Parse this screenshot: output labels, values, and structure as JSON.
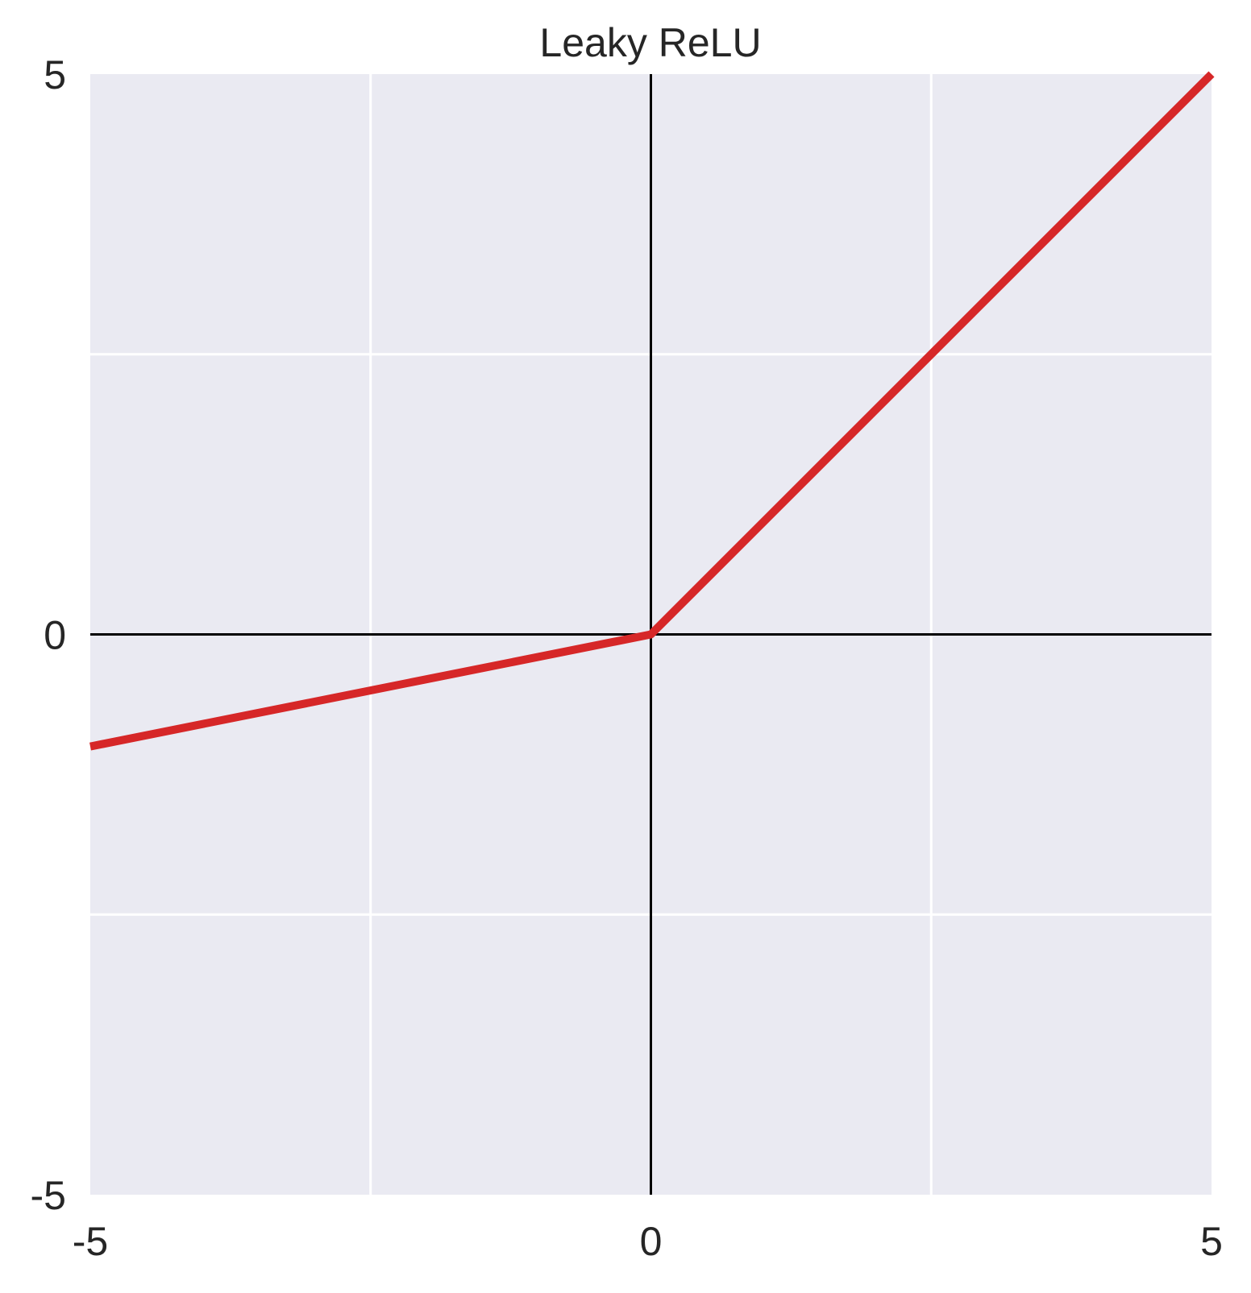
{
  "chart_data": {
    "type": "line",
    "title": "Leaky ReLU",
    "xlabel": "",
    "ylabel": "",
    "xlim": [
      -5,
      5
    ],
    "ylim": [
      -5,
      5
    ],
    "x_ticks": [
      -5,
      0,
      5
    ],
    "x_tick_labels": [
      "-5",
      "0",
      "5"
    ],
    "y_ticks": [
      -5,
      0,
      5
    ],
    "y_tick_labels": [
      "-5",
      "0",
      "5"
    ],
    "grid": true,
    "gridlines_x": [
      -2.5,
      2.5
    ],
    "gridlines_y": [
      -2.5,
      2.5
    ],
    "zero_axes": true,
    "legend": "none",
    "series": [
      {
        "x": [
          -5,
          0,
          5
        ],
        "y": [
          -1,
          0,
          5
        ],
        "color": "#d62728"
      }
    ],
    "colors": {
      "plot_background": "#eaeaf2",
      "grid": "#ffffff",
      "axis_lines": "#000000",
      "text": "#262626"
    }
  }
}
